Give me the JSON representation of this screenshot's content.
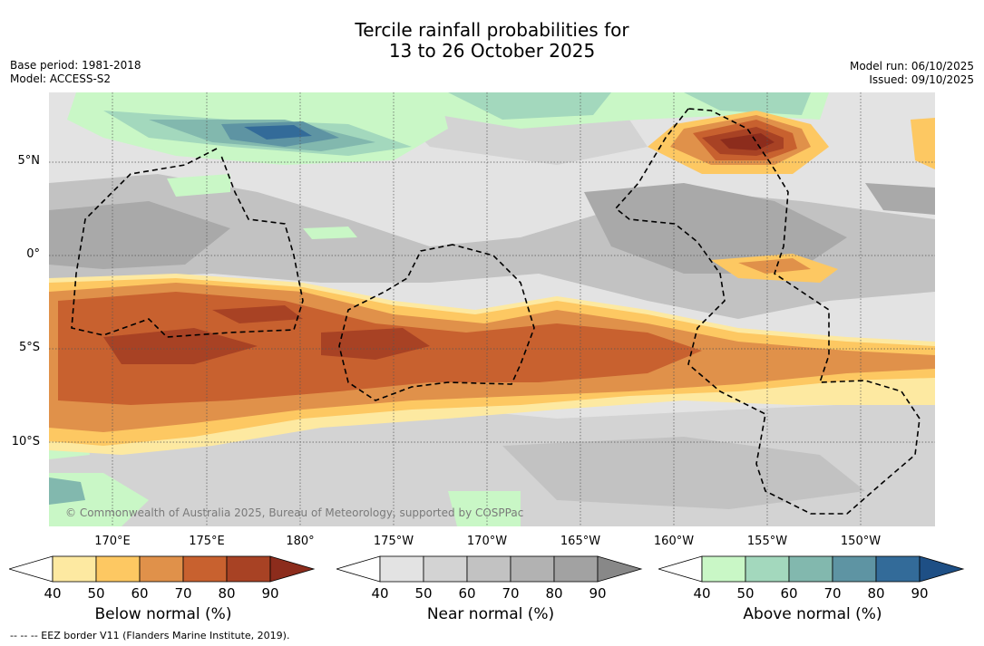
{
  "title": {
    "line1": "Tercile rainfall probabilities for",
    "line2": "13 to 26 October 2025"
  },
  "meta": {
    "base_period": "Base period: 1981-2018",
    "model": "Model: ACCESS-S2",
    "model_run": "Model run: 06/10/2025",
    "issued": "Issued: 09/10/2025"
  },
  "map": {
    "copyright": "© Commonwealth of Australia 2025, Bureau of Meteorology, supported by COSPPac",
    "lat_labels": [
      "5°N",
      "0°",
      "5°S",
      "10°S"
    ],
    "lon_labels": [
      "170°E",
      "175°E",
      "180°",
      "175°W",
      "170°W",
      "165°W",
      "160°W",
      "155°W",
      "150°W"
    ]
  },
  "colorbars": [
    {
      "name": "Below normal (%)",
      "ticks": [
        "40",
        "50",
        "60",
        "70",
        "80",
        "90"
      ],
      "colors": [
        "#ffffff",
        "#fde9a1",
        "#fdc862",
        "#e0914a",
        "#c8612f",
        "#a84224",
        "#8c2c1c"
      ]
    },
    {
      "name": "Near normal (%)",
      "ticks": [
        "40",
        "50",
        "60",
        "70",
        "80",
        "90"
      ],
      "colors": [
        "#ffffff",
        "#e3e3e3",
        "#d3d3d3",
        "#c2c2c2",
        "#b2b2b2",
        "#a2a2a2",
        "#888888"
      ]
    },
    {
      "name": "Above normal (%)",
      "ticks": [
        "40",
        "50",
        "60",
        "70",
        "80",
        "90"
      ],
      "colors": [
        "#ffffff",
        "#c9f7c6",
        "#a3d8bd",
        "#82b8ae",
        "#5e94a3",
        "#336b99",
        "#1e4f85"
      ]
    }
  ],
  "footnote": "-- -- -- EEZ border V11 (Flanders Marine Institute, 2019)."
}
